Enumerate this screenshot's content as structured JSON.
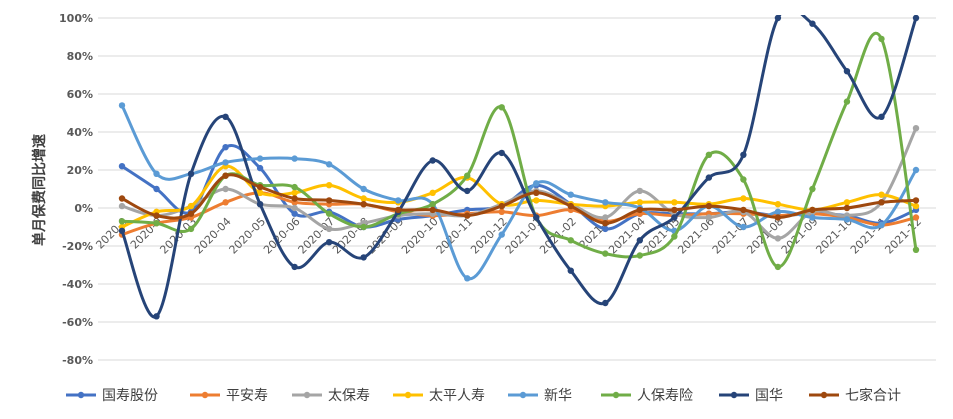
{
  "chart_data": {
    "type": "line",
    "xlabel": "",
    "ylabel": "单月保费同比增速",
    "ylim": [
      -80,
      100
    ],
    "yticks": [
      -80,
      -60,
      -40,
      -20,
      0,
      20,
      40,
      60,
      80,
      100
    ],
    "ytick_labels": [
      "-80%",
      "-60%",
      "-40%",
      "-20%",
      "0%",
      "20%",
      "40%",
      "60%",
      "80%",
      "100%"
    ],
    "grid": true,
    "legend_position": "bottom",
    "categories": [
      "2020-02",
      "2020-03",
      "2020-03",
      "2020-04",
      "2020-05",
      "2020-06",
      "2020-07",
      "2020-08",
      "2020-09",
      "2020-10",
      "2020-11",
      "2020-12",
      "2021-01",
      "2021-02",
      "2021-03",
      "2021-04",
      "2021-05",
      "2021-06",
      "2021-07",
      "2021-08",
      "2021-09",
      "2021-10",
      "2021-11",
      "2021-12"
    ],
    "category_labels": [
      "2020-0",
      "2020-0",
      "2020-03",
      "2020-04",
      "2020-05",
      "2020-06",
      "2020-07",
      "2020-08",
      "2020-09",
      "2020-10",
      "2020-11",
      "2020-12",
      "2021-01",
      "2021-02",
      "2021-0",
      "2021-04",
      "2021-05",
      "2021-06",
      "2021-07",
      "2021-08",
      "2021-09",
      "2021-10",
      "2021-11",
      "2021-12"
    ],
    "series": [
      {
        "name": "国寿股份",
        "color": "#4472C4",
        "values": [
          22,
          10,
          -2,
          32,
          21,
          -3,
          -2,
          -10,
          -6,
          -4,
          -1,
          1,
          12,
          2,
          -11,
          -3,
          -3,
          -3,
          -2,
          -4,
          -3,
          -4,
          -8,
          -1
        ]
      },
      {
        "name": "平安寿",
        "color": "#ED7D31",
        "values": [
          -14,
          -8,
          -5,
          3,
          8,
          3,
          2,
          2,
          -2,
          -4,
          -3,
          -2,
          -4,
          -1,
          -7,
          -3,
          -4,
          -3,
          -3,
          -4,
          -3,
          -5,
          -9,
          -5
        ]
      },
      {
        "name": "太保寿",
        "color": "#A5A5A5",
        "values": [
          1,
          -4,
          1,
          10,
          2,
          0,
          -11,
          -8,
          -4,
          -3,
          -4,
          2,
          9,
          2,
          -5,
          9,
          -3,
          -5,
          -2,
          -16,
          -2,
          -4,
          3,
          42
        ]
      },
      {
        "name": "太平人寿",
        "color": "#FFC000",
        "values": [
          -10,
          -2,
          1,
          22,
          8,
          8,
          12,
          5,
          3,
          8,
          16,
          2,
          4,
          2,
          1,
          3,
          3,
          2,
          5,
          2,
          -1,
          3,
          7,
          1
        ]
      },
      {
        "name": "新华",
        "color": "#5B9BD5",
        "values": [
          54,
          18,
          18,
          24,
          26,
          26,
          23,
          10,
          4,
          2,
          -37,
          -14,
          13,
          7,
          3,
          0,
          -12,
          1,
          -10,
          -2,
          -5,
          -6,
          -9,
          20
        ]
      },
      {
        "name": "人保寿险",
        "color": "#70AD47",
        "values": [
          -7,
          -8,
          -11,
          17,
          12,
          11,
          -3,
          -10,
          -3,
          2,
          17,
          53,
          -5,
          -17,
          -24,
          -25,
          -15,
          28,
          15,
          -31,
          10,
          56,
          89,
          -22
        ]
      },
      {
        "name": "国华",
        "color": "#264478",
        "values": [
          -12,
          -57,
          18,
          48,
          2,
          -31,
          -18,
          -26,
          -2,
          25,
          9,
          29,
          -5,
          -33,
          -50,
          -17,
          -5,
          16,
          28,
          100,
          97,
          72,
          48,
          100
        ]
      },
      {
        "name": "七家合计",
        "color": "#9E480E",
        "values": [
          5,
          -4,
          -3,
          17,
          11,
          5,
          4,
          2,
          -1,
          -1,
          -4,
          1,
          8,
          1,
          -8,
          -1,
          -1,
          1,
          -1,
          -5,
          -1,
          0,
          3,
          4
        ]
      }
    ]
  }
}
